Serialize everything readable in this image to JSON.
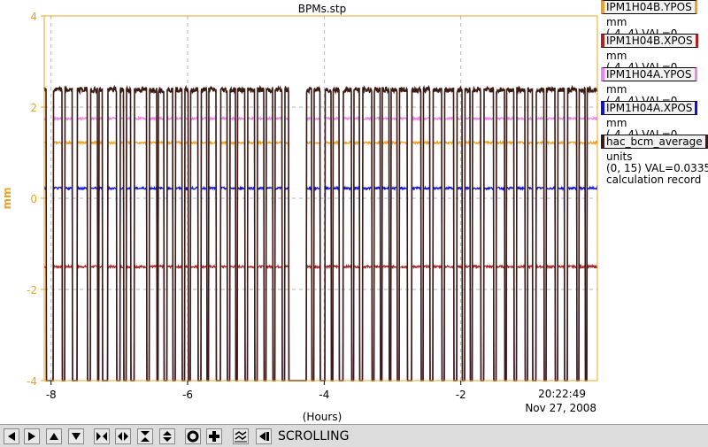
{
  "chart_data": {
    "type": "line",
    "title": "BPMs.stp",
    "xlabel": "(Hours)",
    "ylabel": "mm",
    "xlim": [
      -8.1,
      0
    ],
    "ylim": [
      -4,
      4
    ],
    "x_ticks": [
      -8,
      -6,
      -4,
      -2
    ],
    "y_ticks": [
      -4,
      -2,
      0,
      2,
      4
    ],
    "time_label": "20:22:49",
    "date_label": "Nov 27, 2008",
    "grid": true,
    "series": [
      {
        "name": "IPM1H04B.YPOS",
        "color": "#f0a020",
        "baseline": 1.22,
        "y_on_drop": -4
      },
      {
        "name": "IPM1H04B.XPOS",
        "color": "#b02020",
        "baseline": -1.5,
        "y_on_drop": -4
      },
      {
        "name": "IPM1H04A.YPOS",
        "color": "#ee82ee",
        "baseline": 1.75,
        "y_on_drop": -4
      },
      {
        "name": "IPM1H04A.XPOS",
        "color": "#1010e0",
        "baseline": 0.22,
        "y_on_drop": -4
      },
      {
        "name": "hac_bcm_average",
        "color": "#3a1a14",
        "baseline": 2.38,
        "y_on_drop": -4
      }
    ],
    "beam_trip_intervals_hours": [
      [
        -8.07,
        -7.97
      ],
      [
        -7.84,
        -7.8
      ],
      [
        -7.69,
        -7.62
      ],
      [
        -7.47,
        -7.42
      ],
      [
        -7.32,
        -7.3
      ],
      [
        -7.25,
        -7.17
      ],
      [
        -7.04,
        -6.99
      ],
      [
        -6.94,
        -6.9
      ],
      [
        -6.83,
        -6.78
      ],
      [
        -6.6,
        -6.56
      ],
      [
        -6.45,
        -6.43
      ],
      [
        -6.35,
        -6.3
      ],
      [
        -6.22,
        -6.18
      ],
      [
        -6.08,
        -6.04
      ],
      [
        -5.99,
        -5.96
      ],
      [
        -5.85,
        -5.8
      ],
      [
        -5.72,
        -5.69
      ],
      [
        -5.58,
        -5.52
      ],
      [
        -5.42,
        -5.38
      ],
      [
        -5.3,
        -5.27
      ],
      [
        -5.16,
        -5.12
      ],
      [
        -5.02,
        -4.98
      ],
      [
        -4.88,
        -4.85
      ],
      [
        -4.75,
        -4.72
      ],
      [
        -4.62,
        -4.58
      ],
      [
        -4.52,
        -4.26
      ],
      [
        -4.18,
        -4.15
      ],
      [
        -4.06,
        -3.99
      ],
      [
        -3.9,
        -3.87
      ],
      [
        -3.78,
        -3.72
      ],
      [
        -3.6,
        -3.57
      ],
      [
        -3.48,
        -3.44
      ],
      [
        -3.3,
        -3.27
      ],
      [
        -3.18,
        -3.15
      ],
      [
        -3.05,
        -3.02
      ],
      [
        -2.93,
        -2.9
      ],
      [
        -2.78,
        -2.72
      ],
      [
        -2.58,
        -2.55
      ],
      [
        -2.45,
        -2.41
      ],
      [
        -2.28,
        -2.24
      ],
      [
        -2.1,
        -2.06
      ],
      [
        -1.98,
        -1.94
      ],
      [
        -1.86,
        -1.83
      ],
      [
        -1.71,
        -1.66
      ],
      [
        -1.52,
        -1.48
      ],
      [
        -1.36,
        -1.33
      ],
      [
        -1.22,
        -1.18
      ],
      [
        -1.06,
        -1.02
      ],
      [
        -0.95,
        -0.9
      ],
      [
        -0.78,
        -0.75
      ],
      [
        -0.62,
        -0.58
      ],
      [
        -0.48,
        -0.44
      ],
      [
        -0.3,
        -0.27
      ],
      [
        -0.18,
        -0.15
      ]
    ]
  },
  "legend": [
    {
      "name": "IPM1H04B.YPOS",
      "color": "#f0a020",
      "units": "mm",
      "range": "(-4, 4) VAL=0",
      "extra": ""
    },
    {
      "name": "IPM1H04B.XPOS",
      "color": "#b02020",
      "units": "mm",
      "range": "(-4, 4) VAL=0",
      "extra": ""
    },
    {
      "name": "IPM1H04A.YPOS",
      "color": "#ee82ee",
      "units": "mm",
      "range": "(-4, 4) VAL=0",
      "extra": ""
    },
    {
      "name": "IPM1H04A.XPOS",
      "color": "#1010e0",
      "units": "mm",
      "range": "(-4, 4) VAL=0",
      "extra": ""
    },
    {
      "name": "hac_bcm_average",
      "color": "#3a1a14",
      "units": "units",
      "range": "(0, 15) VAL=0.03350",
      "extra": "calculation record"
    }
  ],
  "toolbar": {
    "status": "SCROLLING",
    "buttons": [
      {
        "name": "scroll-left-button",
        "icon": "arrow-left-icon"
      },
      {
        "name": "scroll-right-button",
        "icon": "arrow-right-icon"
      },
      {
        "name": "scroll-up-button",
        "icon": "arrow-up-icon"
      },
      {
        "name": "scroll-down-button",
        "icon": "arrow-down-icon"
      },
      {
        "name": "zoom-in-x-button",
        "icon": "zoom-in-x-icon"
      },
      {
        "name": "zoom-out-x-button",
        "icon": "zoom-out-x-icon"
      },
      {
        "name": "zoom-in-y-button",
        "icon": "zoom-in-y-icon"
      },
      {
        "name": "zoom-out-y-button",
        "icon": "zoom-out-y-icon"
      },
      {
        "name": "zoom-default-button",
        "icon": "circle-icon"
      },
      {
        "name": "zoom-center-button",
        "icon": "plus-icon"
      },
      {
        "name": "autoscale-button",
        "icon": "autoscale-icon"
      },
      {
        "name": "scroll-mode-button",
        "icon": "scroll-mode-icon"
      }
    ]
  }
}
